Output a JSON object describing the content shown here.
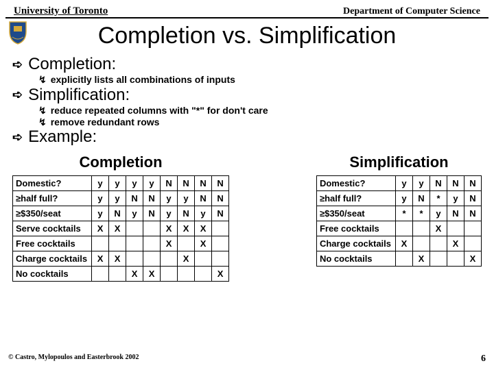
{
  "header": {
    "left": "University of Toronto",
    "right": "Department of Computer Science"
  },
  "title": "Completion vs. Simplification",
  "sections": [
    {
      "head": "Completion:",
      "subs": [
        "explicitly lists all combinations of inputs"
      ]
    },
    {
      "head": "Simplification:",
      "subs": [
        "reduce repeated columns with \"*\" for don't care",
        "remove redundant rows"
      ]
    },
    {
      "head": "Example:",
      "subs": []
    }
  ],
  "tables": {
    "completion": {
      "title": "Completion",
      "rows": [
        {
          "label": "Domestic?",
          "cells": [
            "y",
            "y",
            "y",
            "y",
            "N",
            "N",
            "N",
            "N"
          ]
        },
        {
          "label": "≥half full?",
          "cells": [
            "y",
            "y",
            "N",
            "N",
            "y",
            "y",
            "N",
            "N"
          ]
        },
        {
          "label": "≥$350/seat",
          "cells": [
            "y",
            "N",
            "y",
            "N",
            "y",
            "N",
            "y",
            "N"
          ]
        },
        {
          "label": "Serve cocktails",
          "cells": [
            "X",
            "X",
            "",
            "",
            "X",
            "X",
            "X",
            ""
          ]
        },
        {
          "label": "Free cocktails",
          "cells": [
            "",
            "",
            "",
            "",
            "X",
            "",
            "X",
            ""
          ]
        },
        {
          "label": "Charge cocktails",
          "cells": [
            "X",
            "X",
            "",
            "",
            "",
            "X",
            "",
            ""
          ]
        },
        {
          "label": "No cocktails",
          "cells": [
            "",
            "",
            "X",
            "X",
            "",
            "",
            "",
            "X"
          ]
        }
      ]
    },
    "simplification": {
      "title": "Simplification",
      "rows": [
        {
          "label": "Domestic?",
          "cells": [
            "y",
            "y",
            "N",
            "N",
            "N"
          ]
        },
        {
          "label": "≥half full?",
          "cells": [
            "y",
            "N",
            "*",
            "y",
            "N"
          ]
        },
        {
          "label": "≥$350/seat",
          "cells": [
            "*",
            "*",
            "y",
            "N",
            "N"
          ]
        },
        {
          "label": "Free cocktails",
          "cells": [
            "",
            "",
            "X",
            "",
            ""
          ]
        },
        {
          "label": "Charge cocktails",
          "cells": [
            "X",
            "",
            "",
            "X",
            ""
          ]
        },
        {
          "label": "No cocktails",
          "cells": [
            "",
            "X",
            "",
            "",
            "X"
          ]
        }
      ]
    }
  },
  "footer": {
    "copyright": "© Castro, Mylopoulos and Easterbrook 2002",
    "page": "6"
  },
  "colors": {
    "crest_blue": "#1e4a8a",
    "crest_gold": "#d4a838"
  }
}
